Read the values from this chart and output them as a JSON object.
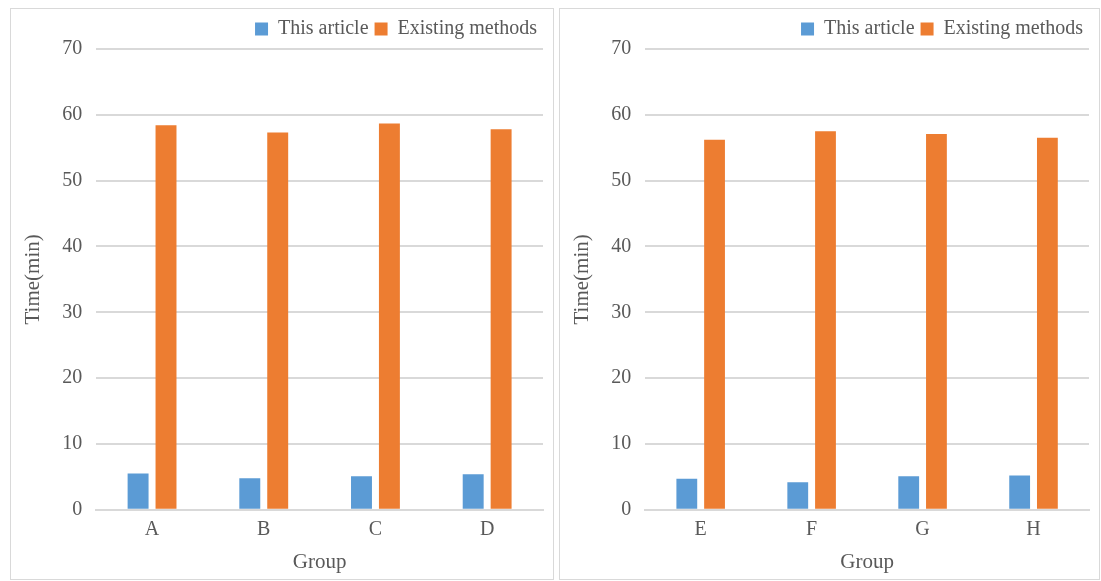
{
  "chart_data": [
    {
      "type": "bar",
      "xlabel": "Group",
      "ylabel": "Time(min)",
      "categories": [
        "A",
        "B",
        "C",
        "D"
      ],
      "series": [
        {
          "name": "This article",
          "color": "#5b9bd5",
          "values": [
            5.5,
            4.8,
            5.1,
            5.4
          ]
        },
        {
          "name": "Existing methods",
          "color": "#ed7d31",
          "values": [
            58.4,
            57.3,
            58.7,
            57.8
          ]
        }
      ],
      "ylim": [
        0,
        70
      ],
      "yticks": [
        0,
        10,
        20,
        30,
        40,
        50,
        60,
        70
      ],
      "grid": "y",
      "legend": "top right"
    },
    {
      "type": "bar",
      "xlabel": "Group",
      "ylabel": "Time(min)",
      "categories": [
        "E",
        "F",
        "G",
        "H"
      ],
      "series": [
        {
          "name": "This article",
          "color": "#5b9bd5",
          "values": [
            4.7,
            4.2,
            5.1,
            5.2
          ]
        },
        {
          "name": "Existing methods",
          "color": "#ed7d31",
          "values": [
            56.2,
            57.5,
            57.1,
            56.5
          ]
        }
      ],
      "ylim": [
        0,
        70
      ],
      "yticks": [
        0,
        10,
        20,
        30,
        40,
        50,
        60,
        70
      ],
      "grid": "y",
      "legend": "top right"
    }
  ]
}
